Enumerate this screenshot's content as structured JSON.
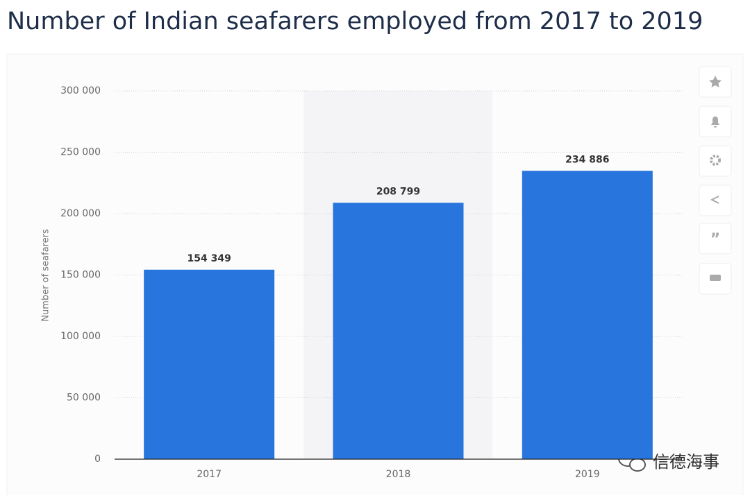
{
  "chart_data": {
    "type": "bar",
    "title": "Number of Indian seafarers employed from 2017 to 2019",
    "y_label": "Number of seafarers",
    "categories": [
      "2017",
      "2018",
      "2019"
    ],
    "values": [
      154349,
      208799,
      234886
    ],
    "value_labels": [
      "154 349",
      "208 799",
      "234 886"
    ],
    "color": "#2876dd",
    "ylim": [
      0,
      300000
    ],
    "yticks": [
      0,
      {
        "value": 50000,
        "label": "50 000"
      },
      {
        "value": 100000,
        "label": "100 000"
      },
      {
        "value": 150000,
        "label": "150 000"
      },
      {
        "value": 200000,
        "label": "200 000"
      },
      {
        "value": 250000,
        "label": "250 000"
      },
      {
        "value": 300000,
        "label": "300 000"
      }
    ],
    "grid": true,
    "watermark": "信德海事"
  }
}
